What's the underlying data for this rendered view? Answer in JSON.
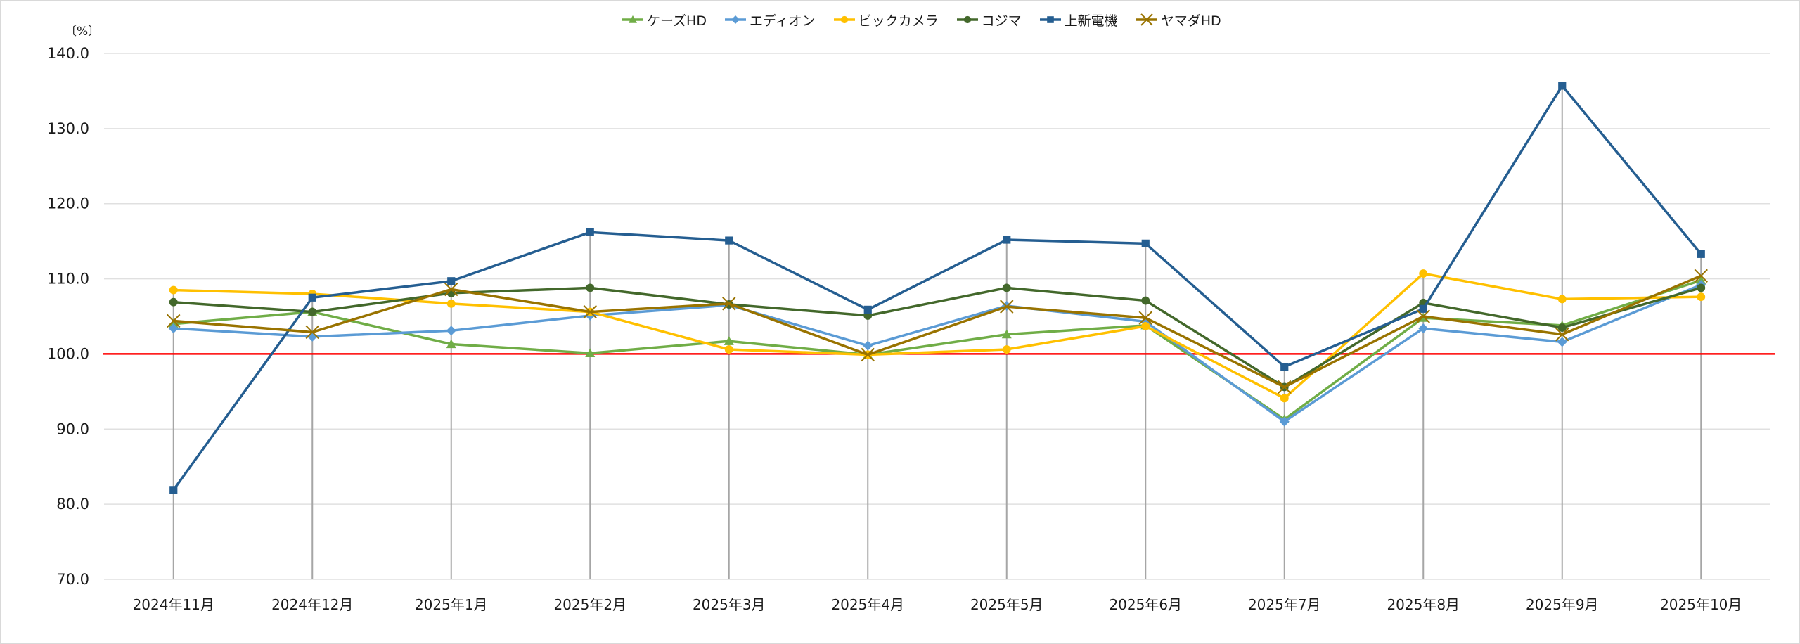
{
  "chart_data": {
    "type": "line",
    "title": "",
    "xlabel": "",
    "ylabel": "〔%〕",
    "ylim": [
      70,
      140
    ],
    "yticks": [
      "70.0",
      "80.0",
      "90.0",
      "100.0",
      "110.0",
      "120.0",
      "130.0",
      "140.0"
    ],
    "grid": true,
    "legend_position": "top",
    "reference_line": {
      "value": 100.0,
      "color": "#ff0000"
    },
    "categories": [
      "2024年11月",
      "2024年12月",
      "2025年1月",
      "2025年2月",
      "2025年3月",
      "2025年4月",
      "2025年5月",
      "2025年6月",
      "2025年7月",
      "2025年8月",
      "2025年9月",
      "2025年10月"
    ],
    "series": [
      {
        "name": "ケーズHD",
        "color": "#70ad47",
        "marker": "triangle",
        "values": [
          104.0,
          105.6,
          101.3,
          100.1,
          101.7,
          99.9,
          102.6,
          103.8,
          91.3,
          104.8,
          103.8,
          109.8
        ]
      },
      {
        "name": "エディオン",
        "color": "#5b9bd5",
        "marker": "diamond",
        "values": [
          103.4,
          102.3,
          103.1,
          105.1,
          106.5,
          101.1,
          106.4,
          104.3,
          91.0,
          103.4,
          101.6,
          109.2
        ]
      },
      {
        "name": "ビックカメラ",
        "color": "#ffc000",
        "marker": "circle",
        "values": [
          108.5,
          108.0,
          106.7,
          105.6,
          100.6,
          99.9,
          100.6,
          103.7,
          94.1,
          110.7,
          107.3,
          107.6
        ]
      },
      {
        "name": "コジマ",
        "color": "#43682b",
        "marker": "circle",
        "values": [
          106.9,
          105.6,
          108.1,
          108.8,
          106.6,
          105.1,
          108.8,
          107.1,
          95.6,
          106.8,
          103.5,
          108.8
        ]
      },
      {
        "name": "上新電機",
        "color": "#255e91",
        "marker": "square",
        "values": [
          81.9,
          107.5,
          109.7,
          116.2,
          115.1,
          105.9,
          115.2,
          114.7,
          98.3,
          106.0,
          135.7,
          113.3
        ]
      },
      {
        "name": "ヤマダHD",
        "color": "#997300",
        "marker": "x",
        "values": [
          104.4,
          102.9,
          108.6,
          105.6,
          106.7,
          99.9,
          106.3,
          104.8,
          95.6,
          105.0,
          102.6,
          110.4
        ]
      }
    ]
  },
  "axis": {
    "unit_label": "〔%〕"
  }
}
